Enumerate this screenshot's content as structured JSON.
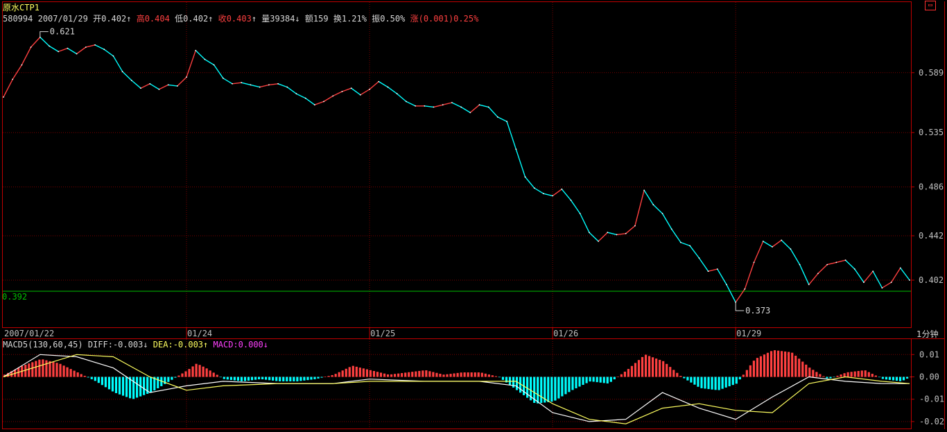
{
  "window": {
    "title": "原水CTP1"
  },
  "quote": {
    "code": "580994",
    "date": "2007/01/29",
    "open_label": "开",
    "open": "0.402",
    "open_arrow": "↑",
    "high_label": "高",
    "high": "0.404",
    "low_label": "低",
    "low": "0.402",
    "low_arrow": "↑",
    "close_label": "收",
    "close": "0.403",
    "close_arrow": "↑",
    "volume_label": "量",
    "volume": "39384",
    "volume_arrow": "↓",
    "amount_label": "额",
    "amount": "159",
    "turnover_label": "换",
    "turnover": "1.21%",
    "amplitude_label": "振",
    "amplitude": "0.50%",
    "change_label": "涨",
    "change": "(0.001)",
    "change_pct": "0.25%"
  },
  "macd_header": {
    "name": "MACD5(130,60,45)",
    "diff_label": "DIFF:",
    "diff": "-0.003",
    "diff_arrow": "↓",
    "dea_label": "DEA:",
    "dea": "-0.003",
    "dea_arrow": "↑",
    "macd_label": "MACD:",
    "macd": "0.000",
    "macd_arrow": "↓"
  },
  "period_label": "1分钟",
  "restore_icon": "restore-icon",
  "colors": {
    "frame": "#c00000",
    "up": "#ff4040",
    "down": "#00ffff",
    "ref_line": "#00c000",
    "diff_line": "#ffffff",
    "dea_line": "#ffff60",
    "axis_text": "#c0c0c0"
  },
  "chart_data": [
    {
      "type": "line",
      "name": "price-1min",
      "title": "",
      "x": [
        "2007/01/22",
        "01/24",
        "01/25",
        "01/26",
        "01/29"
      ],
      "x_tick_labels": [
        "2007/01/22",
        "01/24",
        "01/25",
        "01/26",
        "01/29"
      ],
      "yticks": [
        0.589,
        0.535,
        0.486,
        0.442,
        0.402
      ],
      "ylim": [
        0.362,
        0.632
      ],
      "reference_line": 0.392,
      "max_annotation": {
        "label": "0.621",
        "value": 0.621
      },
      "min_annotation": {
        "label": "0.373",
        "value": 0.373
      },
      "series": [
        {
          "points": [
            [
              0,
              0.567
            ],
            [
              1,
              0.583
            ],
            [
              2,
              0.596
            ],
            [
              3,
              0.612
            ],
            [
              4,
              0.621
            ],
            [
              5,
              0.613
            ],
            [
              6,
              0.608
            ],
            [
              7,
              0.611
            ],
            [
              8,
              0.606
            ],
            [
              9,
              0.612
            ],
            [
              10,
              0.614
            ],
            [
              11,
              0.61
            ],
            [
              12,
              0.604
            ],
            [
              13,
              0.59
            ],
            [
              14,
              0.582
            ],
            [
              15,
              0.575
            ],
            [
              16,
              0.579
            ],
            [
              17,
              0.574
            ],
            [
              18,
              0.578
            ],
            [
              19,
              0.577
            ],
            [
              20,
              0.585
            ],
            [
              21,
              0.609
            ],
            [
              22,
              0.601
            ],
            [
              23,
              0.596
            ],
            [
              24,
              0.584
            ],
            [
              25,
              0.579
            ],
            [
              26,
              0.58
            ],
            [
              27,
              0.578
            ],
            [
              28,
              0.576
            ],
            [
              29,
              0.578
            ],
            [
              30,
              0.579
            ],
            [
              31,
              0.576
            ],
            [
              32,
              0.57
            ],
            [
              33,
              0.566
            ],
            [
              34,
              0.56
            ],
            [
              35,
              0.563
            ],
            [
              36,
              0.568
            ],
            [
              37,
              0.572
            ],
            [
              38,
              0.575
            ],
            [
              39,
              0.569
            ],
            [
              40,
              0.574
            ],
            [
              41,
              0.581
            ],
            [
              42,
              0.576
            ],
            [
              43,
              0.57
            ],
            [
              44,
              0.563
            ],
            [
              45,
              0.559
            ],
            [
              46,
              0.559
            ],
            [
              47,
              0.558
            ],
            [
              48,
              0.56
            ],
            [
              49,
              0.562
            ],
            [
              50,
              0.558
            ],
            [
              51,
              0.553
            ],
            [
              52,
              0.56
            ],
            [
              53,
              0.558
            ],
            [
              54,
              0.549
            ],
            [
              55,
              0.545
            ],
            [
              56,
              0.52
            ],
            [
              57,
              0.495
            ],
            [
              58,
              0.485
            ],
            [
              59,
              0.48
            ],
            [
              60,
              0.478
            ],
            [
              61,
              0.484
            ],
            [
              62,
              0.474
            ],
            [
              63,
              0.462
            ],
            [
              64,
              0.445
            ],
            [
              65,
              0.437
            ],
            [
              66,
              0.445
            ],
            [
              67,
              0.443
            ],
            [
              68,
              0.444
            ],
            [
              69,
              0.451
            ],
            [
              70,
              0.483
            ],
            [
              71,
              0.47
            ],
            [
              72,
              0.462
            ],
            [
              73,
              0.448
            ],
            [
              74,
              0.436
            ],
            [
              75,
              0.433
            ],
            [
              76,
              0.422
            ],
            [
              77,
              0.41
            ],
            [
              78,
              0.412
            ],
            [
              79,
              0.398
            ],
            [
              80,
              0.382
            ],
            [
              81,
              0.394
            ],
            [
              82,
              0.418
            ],
            [
              83,
              0.437
            ],
            [
              84,
              0.432
            ],
            [
              85,
              0.438
            ],
            [
              86,
              0.43
            ],
            [
              87,
              0.416
            ],
            [
              88,
              0.398
            ],
            [
              89,
              0.408
            ],
            [
              90,
              0.416
            ],
            [
              91,
              0.418
            ],
            [
              92,
              0.42
            ],
            [
              93,
              0.412
            ],
            [
              94,
              0.4
            ],
            [
              95,
              0.41
            ],
            [
              96,
              0.395
            ],
            [
              97,
              0.4
            ],
            [
              98,
              0.413
            ],
            [
              99,
              0.402
            ]
          ]
        }
      ]
    },
    {
      "type": "bar",
      "name": "MACD5(130,60,45)",
      "title": "",
      "yticks": [
        0.01,
        0.0,
        -0.01,
        -0.02
      ],
      "ytick_labels": [
        "0.01",
        "0.00",
        "-0.01",
        "-0.02"
      ],
      "ylim": [
        -0.0225,
        0.0135
      ],
      "series": [
        {
          "name": "MACD",
          "points": [
            [
              0,
              0.001
            ],
            [
              2,
              0.005
            ],
            [
              4,
              0.008
            ],
            [
              6,
              0.006
            ],
            [
              8,
              0.002
            ],
            [
              10,
              -0.002
            ],
            [
              12,
              -0.007
            ],
            [
              14,
              -0.01
            ],
            [
              16,
              -0.007
            ],
            [
              18,
              -0.002
            ],
            [
              20,
              0.003
            ],
            [
              21,
              0.006
            ],
            [
              22,
              0.004
            ],
            [
              24,
              -0.001
            ],
            [
              26,
              -0.002
            ],
            [
              28,
              -0.001
            ],
            [
              30,
              -0.002
            ],
            [
              32,
              -0.002
            ],
            [
              34,
              -0.001
            ],
            [
              36,
              0.001
            ],
            [
              38,
              0.005
            ],
            [
              40,
              0.003
            ],
            [
              42,
              0.001
            ],
            [
              44,
              0.002
            ],
            [
              46,
              0.003
            ],
            [
              48,
              0.001
            ],
            [
              50,
              0.002
            ],
            [
              52,
              0.002
            ],
            [
              54,
              0.0
            ],
            [
              56,
              -0.006
            ],
            [
              58,
              -0.012
            ],
            [
              60,
              -0.011
            ],
            [
              62,
              -0.006
            ],
            [
              64,
              -0.002
            ],
            [
              66,
              -0.003
            ],
            [
              68,
              0.003
            ],
            [
              70,
              0.01
            ],
            [
              72,
              0.007
            ],
            [
              74,
              0.0
            ],
            [
              76,
              -0.005
            ],
            [
              78,
              -0.006
            ],
            [
              80,
              -0.003
            ],
            [
              82,
              0.008
            ],
            [
              84,
              0.012
            ],
            [
              86,
              0.011
            ],
            [
              88,
              0.004
            ],
            [
              90,
              -0.001
            ],
            [
              92,
              0.002
            ],
            [
              94,
              0.003
            ],
            [
              96,
              -0.001
            ],
            [
              98,
              -0.002
            ],
            [
              99,
              0.0
            ]
          ]
        },
        {
          "name": "DIFF",
          "points": [
            [
              0,
              0.0
            ],
            [
              4,
              0.01
            ],
            [
              8,
              0.009
            ],
            [
              12,
              0.004
            ],
            [
              16,
              -0.007
            ],
            [
              20,
              -0.004
            ],
            [
              24,
              -0.002
            ],
            [
              30,
              -0.003
            ],
            [
              36,
              -0.003
            ],
            [
              40,
              -0.001
            ],
            [
              46,
              -0.002
            ],
            [
              52,
              -0.002
            ],
            [
              56,
              -0.004
            ],
            [
              60,
              -0.016
            ],
            [
              64,
              -0.02
            ],
            [
              68,
              -0.019
            ],
            [
              72,
              -0.007
            ],
            [
              76,
              -0.014
            ],
            [
              80,
              -0.019
            ],
            [
              84,
              -0.009
            ],
            [
              88,
              0.0
            ],
            [
              92,
              -0.002
            ],
            [
              96,
              -0.003
            ],
            [
              99,
              -0.003
            ]
          ]
        },
        {
          "name": "DEA",
          "points": [
            [
              0,
              0.0
            ],
            [
              4,
              0.005
            ],
            [
              8,
              0.01
            ],
            [
              12,
              0.009
            ],
            [
              16,
              0.0
            ],
            [
              20,
              -0.006
            ],
            [
              24,
              -0.004
            ],
            [
              30,
              -0.003
            ],
            [
              36,
              -0.003
            ],
            [
              40,
              -0.002
            ],
            [
              46,
              -0.002
            ],
            [
              52,
              -0.002
            ],
            [
              56,
              -0.002
            ],
            [
              60,
              -0.012
            ],
            [
              64,
              -0.019
            ],
            [
              68,
              -0.021
            ],
            [
              72,
              -0.014
            ],
            [
              76,
              -0.012
            ],
            [
              80,
              -0.015
            ],
            [
              84,
              -0.016
            ],
            [
              88,
              -0.003
            ],
            [
              92,
              0.0
            ],
            [
              96,
              -0.002
            ],
            [
              99,
              -0.003
            ]
          ]
        }
      ]
    }
  ]
}
